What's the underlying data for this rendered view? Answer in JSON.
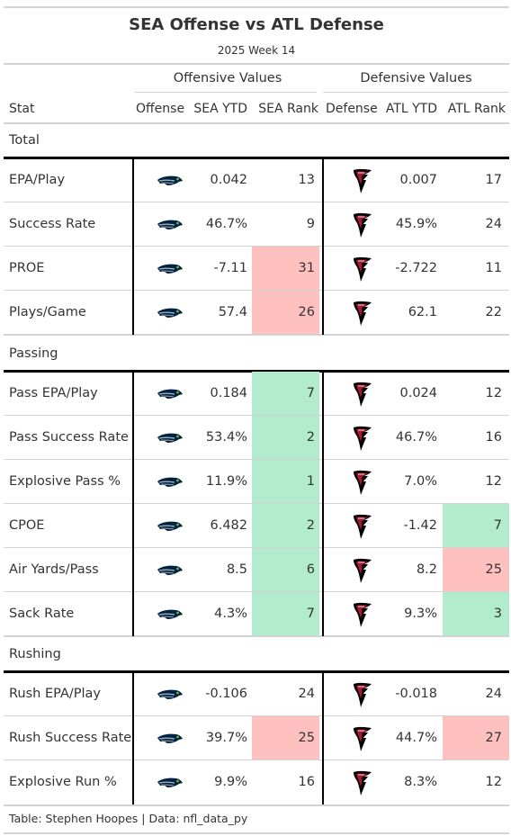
{
  "header": {
    "title": "SEA Offense vs ATL Defense",
    "subtitle": "2025 Week 14",
    "spanner_offense": "Offensive Values",
    "spanner_defense": "Defensive Values"
  },
  "columns": [
    "Stat",
    "Offense",
    "SEA YTD",
    "SEA Rank",
    "Defense",
    "ATL YTD",
    "ATL Rank"
  ],
  "colors": {
    "good": "#b3ebcd",
    "bad": "#ffc0c0",
    "seahawks_navy": "#002244",
    "seahawks_gray": "#a5acaf",
    "seahawks_green": "#69be28",
    "falcons_red": "#a71930",
    "falcons_black": "#000000"
  },
  "icons": {
    "offense": "seahawks-logo-icon",
    "defense": "falcons-logo-icon"
  },
  "groups": [
    {
      "label": "Total",
      "rows": [
        {
          "stat": "EPA/Play",
          "sea_ytd": "0.042",
          "sea_rank": "13",
          "sea_shade": "none",
          "atl_ytd": "0.007",
          "atl_rank": "17",
          "atl_shade": "none"
        },
        {
          "stat": "Success Rate",
          "sea_ytd": "46.7%",
          "sea_rank": "9",
          "sea_shade": "none",
          "atl_ytd": "45.9%",
          "atl_rank": "24",
          "atl_shade": "none"
        },
        {
          "stat": "PROE",
          "sea_ytd": "-7.11",
          "sea_rank": "31",
          "sea_shade": "bad",
          "atl_ytd": "-2.722",
          "atl_rank": "11",
          "atl_shade": "none"
        },
        {
          "stat": "Plays/Game",
          "sea_ytd": "57.4",
          "sea_rank": "26",
          "sea_shade": "bad",
          "atl_ytd": "62.1",
          "atl_rank": "22",
          "atl_shade": "none"
        }
      ]
    },
    {
      "label": "Passing",
      "rows": [
        {
          "stat": "Pass EPA/Play",
          "sea_ytd": "0.184",
          "sea_rank": "7",
          "sea_shade": "good",
          "atl_ytd": "0.024",
          "atl_rank": "12",
          "atl_shade": "none"
        },
        {
          "stat": "Pass Success Rate",
          "sea_ytd": "53.4%",
          "sea_rank": "2",
          "sea_shade": "good",
          "atl_ytd": "46.7%",
          "atl_rank": "16",
          "atl_shade": "none"
        },
        {
          "stat": "Explosive Pass %",
          "sea_ytd": "11.9%",
          "sea_rank": "1",
          "sea_shade": "good",
          "atl_ytd": "7.0%",
          "atl_rank": "12",
          "atl_shade": "none"
        },
        {
          "stat": "CPOE",
          "sea_ytd": "6.482",
          "sea_rank": "2",
          "sea_shade": "good",
          "atl_ytd": "-1.42",
          "atl_rank": "7",
          "atl_shade": "good"
        },
        {
          "stat": "Air Yards/Pass",
          "sea_ytd": "8.5",
          "sea_rank": "6",
          "sea_shade": "good",
          "atl_ytd": "8.2",
          "atl_rank": "25",
          "atl_shade": "bad"
        },
        {
          "stat": "Sack Rate",
          "sea_ytd": "4.3%",
          "sea_rank": "7",
          "sea_shade": "good",
          "atl_ytd": "9.3%",
          "atl_rank": "3",
          "atl_shade": "good"
        }
      ]
    },
    {
      "label": "Rushing",
      "rows": [
        {
          "stat": "Rush EPA/Play",
          "sea_ytd": "-0.106",
          "sea_rank": "24",
          "sea_shade": "none",
          "atl_ytd": "-0.018",
          "atl_rank": "24",
          "atl_shade": "none"
        },
        {
          "stat": "Rush Success Rate",
          "sea_ytd": "39.7%",
          "sea_rank": "25",
          "sea_shade": "bad",
          "atl_ytd": "44.7%",
          "atl_rank": "27",
          "atl_shade": "bad"
        },
        {
          "stat": "Explosive Run %",
          "sea_ytd": "9.9%",
          "sea_rank": "16",
          "sea_shade": "none",
          "atl_ytd": "8.3%",
          "atl_rank": "12",
          "atl_shade": "none"
        }
      ]
    }
  ],
  "footer": "Table: Stephen Hoopes | Data: nfl_data_py",
  "chart_data": {
    "type": "table",
    "title": "SEA Offense vs ATL Defense",
    "subtitle": "2025 Week 14",
    "columns": [
      "Stat",
      "Offense",
      "SEA YTD",
      "SEA Rank",
      "Defense",
      "ATL YTD",
      "ATL Rank"
    ],
    "rows": [
      [
        "EPA/Play",
        "SEA",
        "0.042",
        13,
        "ATL",
        "0.007",
        17
      ],
      [
        "Success Rate",
        "SEA",
        "46.7%",
        9,
        "ATL",
        "45.9%",
        24
      ],
      [
        "PROE",
        "SEA",
        "-7.11",
        31,
        "ATL",
        "-2.722",
        11
      ],
      [
        "Plays/Game",
        "SEA",
        "57.4",
        26,
        "ATL",
        "62.1",
        22
      ],
      [
        "Pass EPA/Play",
        "SEA",
        "0.184",
        7,
        "ATL",
        "0.024",
        12
      ],
      [
        "Pass Success Rate",
        "SEA",
        "53.4%",
        2,
        "ATL",
        "46.7%",
        16
      ],
      [
        "Explosive Pass %",
        "SEA",
        "11.9%",
        1,
        "ATL",
        "7.0%",
        12
      ],
      [
        "CPOE",
        "SEA",
        "6.482",
        2,
        "ATL",
        "-1.42",
        7
      ],
      [
        "Air Yards/Pass",
        "SEA",
        "8.5",
        6,
        "ATL",
        "8.2",
        25
      ],
      [
        "Sack Rate",
        "SEA",
        "4.3%",
        7,
        "ATL",
        "9.3%",
        3
      ],
      [
        "Rush EPA/Play",
        "SEA",
        "-0.106",
        24,
        "ATL",
        "-0.018",
        24
      ],
      [
        "Rush Success Rate",
        "SEA",
        "39.7%",
        25,
        "ATL",
        "44.7%",
        27
      ],
      [
        "Explosive Run %",
        "SEA",
        "9.9%",
        16,
        "ATL",
        "8.3%",
        12
      ]
    ]
  }
}
